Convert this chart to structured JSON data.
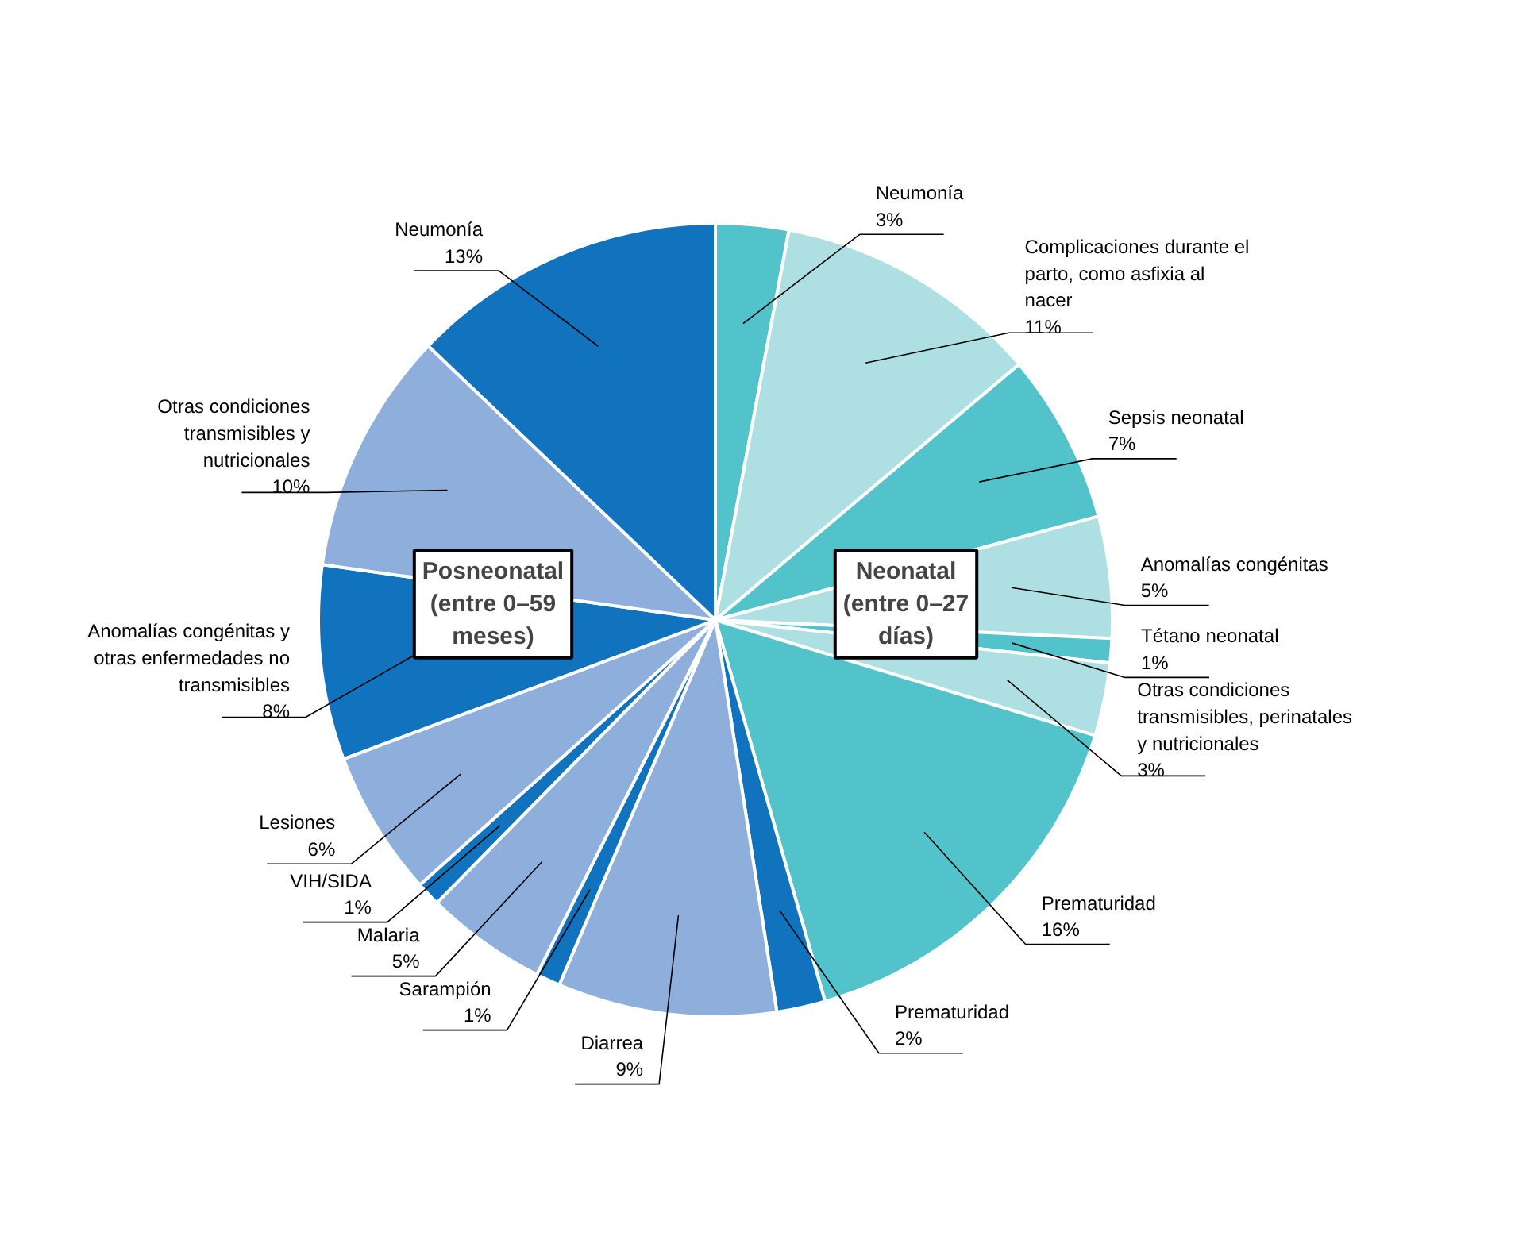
{
  "chart_data": {
    "type": "pie",
    "value_labels": [
      "3%",
      "11%",
      "7%",
      "5%",
      "1%",
      "3%",
      "16%",
      "2%",
      "9%",
      "1%",
      "5%",
      "1%",
      "6%",
      "8%",
      "10%",
      "13%"
    ],
    "categories": [
      "Neumonía",
      "Complicaciones durante el parto, como asfixia al nacer",
      "Sepsis neonatal",
      "Anomalías congénitas",
      "Tétano neonatal",
      "Otras condiciones transmisibles, perinatales y nutricionales",
      "Prematuridad",
      "Prematuridad",
      "Diarrea",
      "Sarampión",
      "Malaria",
      "VIH/SIDA",
      "Lesiones",
      "Anomalías congénitas y otras enfermedades no transmisibles",
      "Otras condiciones transmisibles y nutricionales",
      "Neumonía"
    ],
    "values": [
      3,
      11,
      7,
      5,
      1,
      3,
      16,
      2,
      9,
      1,
      5,
      1,
      6,
      8,
      10,
      13
    ],
    "colors": [
      "#52c3cb",
      "#aedfe2",
      "#52c3cb",
      "#aedfe2",
      "#52c3cb",
      "#aedfe2",
      "#52c3cb",
      "#1172bd",
      "#8eaedb",
      "#1172bd",
      "#8eaedb",
      "#1172bd",
      "#8eaedb",
      "#1172bd",
      "#8eaedb",
      "#1172bd"
    ],
    "annotations": [
      "Posneonatal\n(entre 0–59\nmeses)",
      "Neonatal\n(entre 0–27\ndías)"
    ]
  }
}
